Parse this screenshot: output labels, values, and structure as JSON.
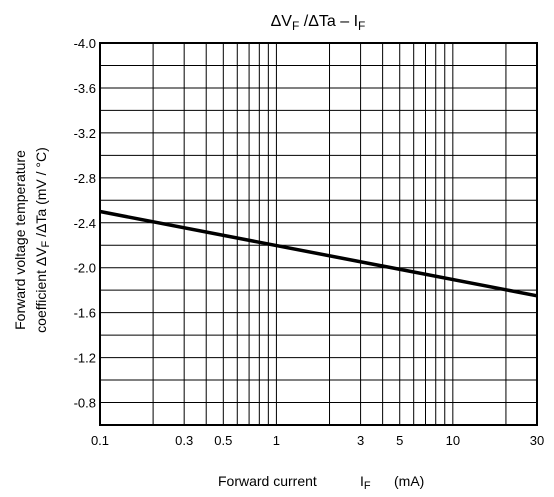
{
  "chart_data": {
    "type": "line",
    "title": {
      "main": "ΔV",
      "sub1": "F",
      "mid": " /ΔTa – I",
      "sub2": "F"
    },
    "xlabel": {
      "main": "Forward current",
      "symbol": "I",
      "sub": "F",
      "unit": "(mA)"
    },
    "ylabel": {
      "line1": "Forward voltage temperature",
      "line2": {
        "pre": "coefficient ΔV",
        "sub": "F",
        "post": " /ΔTa (mV / °C)"
      }
    },
    "x_scale": "log",
    "xlim": [
      0.1,
      30
    ],
    "x_ticks": [
      {
        "value": 0.1,
        "label": "0.1"
      },
      {
        "value": 0.3,
        "label": "0.3"
      },
      {
        "value": 0.5,
        "label": "0.5"
      },
      {
        "value": 1,
        "label": "1"
      },
      {
        "value": 3,
        "label": "3"
      },
      {
        "value": 5,
        "label": "5"
      },
      {
        "value": 10,
        "label": "10"
      },
      {
        "value": 30,
        "label": "30"
      }
    ],
    "x_gridlines": [
      0.2,
      0.3,
      0.4,
      0.5,
      0.6,
      0.7,
      0.8,
      0.9,
      1,
      2,
      3,
      4,
      5,
      6,
      7,
      8,
      9,
      10,
      20
    ],
    "y_axis_inverted": true,
    "ylim": [
      -0.6,
      -4.0
    ],
    "y_ticks": [
      {
        "value": -4.0,
        "label": "-4.0"
      },
      {
        "value": -3.6,
        "label": "-3.6"
      },
      {
        "value": -3.2,
        "label": "-3.2"
      },
      {
        "value": -2.8,
        "label": "-2.8"
      },
      {
        "value": -2.4,
        "label": "-2.4"
      },
      {
        "value": -2.0,
        "label": "-2.0"
      },
      {
        "value": -1.6,
        "label": "-1.6"
      },
      {
        "value": -1.2,
        "label": "-1.2"
      },
      {
        "value": -0.8,
        "label": "-0.8"
      }
    ],
    "y_gridline_step": 0.2,
    "grid": true,
    "series": [
      {
        "color": "#000000",
        "x": [
          0.1,
          30
        ],
        "y": [
          -2.5,
          -1.75
        ]
      }
    ]
  }
}
